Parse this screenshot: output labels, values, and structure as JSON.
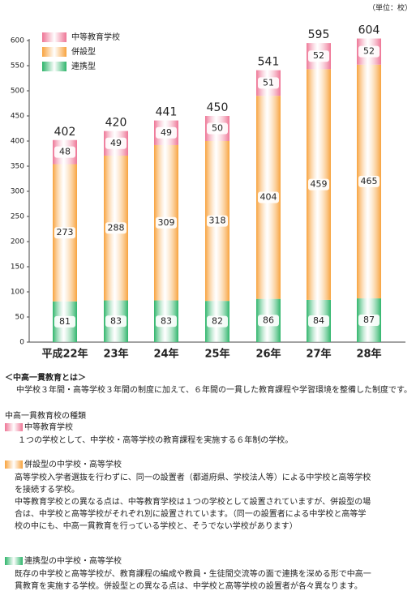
{
  "chart_data": {
    "type": "stacked-bar",
    "unit": "（単位：校）",
    "categories": [
      "平成22年",
      "23年",
      "24年",
      "25年",
      "26年",
      "27年",
      "28年"
    ],
    "series": [
      {
        "name": "連携型",
        "color": "#2fb56b",
        "values": [
          81,
          83,
          83,
          82,
          86,
          84,
          87
        ]
      },
      {
        "name": "併設型",
        "color": "#f8a33e",
        "values": [
          273,
          288,
          309,
          318,
          404,
          459,
          465
        ]
      },
      {
        "name": "中等教育学校",
        "color": "#ee7595",
        "values": [
          48,
          49,
          49,
          50,
          51,
          52,
          52
        ]
      }
    ],
    "totals": [
      402,
      420,
      441,
      450,
      541,
      595,
      604
    ],
    "ylim": [
      0,
      600
    ],
    "yticks": [
      0,
      50,
      100,
      150,
      200,
      250,
      300,
      350,
      400,
      450,
      500,
      550,
      600
    ],
    "grid": false,
    "legend": "top-left"
  },
  "notes": {
    "definition": {
      "heading": "＜中高一貫教育とは＞",
      "lines": [
        "中学校３年間・高等学校３年間の制度に加えて、６年間の一貫した教育課程や学習環境を整備した制度です。"
      ]
    },
    "types_heading": "中高一貫教育校の種類",
    "types": [
      {
        "name": "中等教育学校",
        "lines": [
          "１つの学校として、中学校・高等学校の教育課程を実施する６年制の学校。"
        ]
      },
      {
        "name": "併設型の中学校・高等学校",
        "lines": [
          "高等学校入学者選抜を行わずに、同一の設置者（都道府県、学校法人等）による中学校と高等学校",
          "を接続する学校。",
          "中等教育学校との異なる点は、中等教育学校は１つの学校として設置されていますが、併設型の場",
          "合は、中学校と高等学校がそれぞれ別に設置されています。（同一の設置者による中学校と高等学",
          "校の中にも、中高一貫教育を行っている学校と、そうでない学校があります）"
        ]
      },
      {
        "name": "連携型の中学校・高等学校",
        "lines": [
          "既存の中学校と高等学校が、教育課程の編成や教員・生徒間交流等の面で連携を深める形で中高一",
          "貫教育を実施する学校。併設型との異なる点は、中学校と高等学校の設置者が各々異なります。"
        ]
      }
    ]
  }
}
